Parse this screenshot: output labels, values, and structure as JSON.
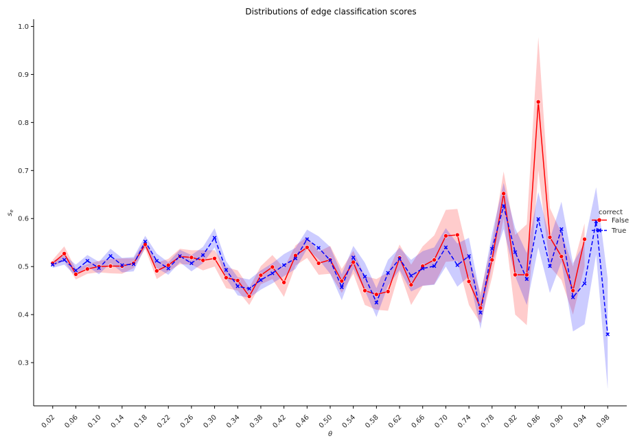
{
  "chart_data": {
    "type": "line",
    "title": "Distributions of edge classification scores",
    "xlabel": "θ",
    "ylabel": "s_e",
    "ylim": [
      0.21,
      1.015
    ],
    "xlim": [
      -0.013,
      1.013
    ],
    "yticks": [
      "0.3",
      "0.4",
      "0.5",
      "0.6",
      "0.7",
      "0.8",
      "0.9",
      "1.0"
    ],
    "xticks": [
      "0.02",
      "0.06",
      "0.10",
      "0.14",
      "0.18",
      "0.22",
      "0.26",
      "0.30",
      "0.34",
      "0.38",
      "0.42",
      "0.46",
      "0.50",
      "0.54",
      "0.58",
      "0.62",
      "0.66",
      "0.70",
      "0.74",
      "0.78",
      "0.82",
      "0.86",
      "0.90",
      "0.94",
      "0.98"
    ],
    "legend": {
      "title": "correct",
      "position": "right"
    },
    "grid": false,
    "series": [
      {
        "name": "False",
        "color": "#ff0000",
        "linestyle": "solid",
        "marker": "circle",
        "x": [
          0.02,
          0.04,
          0.06,
          0.08,
          0.1,
          0.12,
          0.14,
          0.16,
          0.18,
          0.2,
          0.22,
          0.24,
          0.26,
          0.28,
          0.3,
          0.32,
          0.34,
          0.36,
          0.38,
          0.4,
          0.42,
          0.44,
          0.46,
          0.48,
          0.5,
          0.52,
          0.54,
          0.56,
          0.58,
          0.6,
          0.62,
          0.64,
          0.66,
          0.68,
          0.7,
          0.72,
          0.74,
          0.76,
          0.78,
          0.8,
          0.82,
          0.84,
          0.86,
          0.88,
          0.9,
          0.92,
          0.94
        ],
        "values": [
          0.507,
          0.527,
          0.484,
          0.495,
          0.5,
          0.501,
          0.501,
          0.507,
          0.546,
          0.491,
          0.503,
          0.521,
          0.519,
          0.513,
          0.517,
          0.477,
          0.471,
          0.438,
          0.482,
          0.499,
          0.467,
          0.523,
          0.54,
          0.507,
          0.514,
          0.47,
          0.509,
          0.45,
          0.442,
          0.448,
          0.518,
          0.462,
          0.501,
          0.514,
          0.564,
          0.566,
          0.469,
          0.414,
          0.514,
          0.652,
          0.483,
          0.483,
          0.843,
          0.561,
          0.521,
          0.45,
          0.557
        ],
        "ci_low": [
          0.5,
          0.512,
          0.473,
          0.485,
          0.488,
          0.486,
          0.485,
          0.497,
          0.537,
          0.474,
          0.49,
          0.505,
          0.504,
          0.492,
          0.5,
          0.455,
          0.45,
          0.42,
          0.463,
          0.474,
          0.437,
          0.502,
          0.518,
          0.483,
          0.485,
          0.445,
          0.485,
          0.42,
          0.41,
          0.408,
          0.49,
          0.42,
          0.46,
          0.463,
          0.51,
          0.512,
          0.42,
          0.382,
          0.478,
          0.6,
          0.4,
          0.378,
          0.7,
          0.5,
          0.472,
          0.4,
          0.5
        ],
        "ci_high": [
          0.514,
          0.542,
          0.495,
          0.505,
          0.512,
          0.516,
          0.517,
          0.517,
          0.555,
          0.508,
          0.516,
          0.537,
          0.534,
          0.534,
          0.534,
          0.499,
          0.492,
          0.456,
          0.501,
          0.524,
          0.497,
          0.544,
          0.562,
          0.531,
          0.543,
          0.495,
          0.533,
          0.48,
          0.474,
          0.488,
          0.546,
          0.504,
          0.542,
          0.565,
          0.618,
          0.62,
          0.518,
          0.446,
          0.55,
          0.698,
          0.566,
          0.588,
          0.978,
          0.622,
          0.57,
          0.5,
          0.59
        ]
      },
      {
        "name": "True",
        "color": "#0000ff",
        "linestyle": "dashed",
        "marker": "x",
        "x": [
          0.02,
          0.04,
          0.06,
          0.08,
          0.1,
          0.12,
          0.14,
          0.16,
          0.18,
          0.2,
          0.22,
          0.24,
          0.26,
          0.28,
          0.3,
          0.32,
          0.34,
          0.36,
          0.38,
          0.4,
          0.42,
          0.44,
          0.46,
          0.48,
          0.5,
          0.52,
          0.54,
          0.56,
          0.58,
          0.6,
          0.62,
          0.64,
          0.66,
          0.68,
          0.7,
          0.72,
          0.74,
          0.76,
          0.78,
          0.8,
          0.82,
          0.84,
          0.86,
          0.88,
          0.9,
          0.92,
          0.94,
          0.96,
          0.98
        ],
        "values": [
          0.504,
          0.514,
          0.492,
          0.512,
          0.497,
          0.522,
          0.503,
          0.505,
          0.552,
          0.512,
          0.496,
          0.522,
          0.507,
          0.524,
          0.56,
          0.493,
          0.459,
          0.454,
          0.472,
          0.486,
          0.503,
          0.517,
          0.557,
          0.539,
          0.513,
          0.457,
          0.519,
          0.479,
          0.425,
          0.487,
          0.516,
          0.481,
          0.496,
          0.501,
          0.54,
          0.503,
          0.522,
          0.404,
          0.537,
          0.626,
          0.53,
          0.474,
          0.599,
          0.501,
          0.578,
          0.436,
          0.465,
          0.594,
          0.359
        ],
        "ci_low": [
          0.497,
          0.504,
          0.48,
          0.5,
          0.484,
          0.507,
          0.488,
          0.49,
          0.54,
          0.497,
          0.483,
          0.509,
          0.49,
          0.507,
          0.54,
          0.475,
          0.44,
          0.435,
          0.452,
          0.465,
          0.48,
          0.495,
          0.537,
          0.515,
          0.485,
          0.43,
          0.495,
          0.45,
          0.395,
          0.46,
          0.493,
          0.448,
          0.46,
          0.462,
          0.5,
          0.458,
          0.48,
          0.37,
          0.505,
          0.578,
          0.48,
          0.42,
          0.54,
          0.445,
          0.51,
          0.365,
          0.38,
          0.525,
          0.245
        ],
        "ci_high": [
          0.511,
          0.524,
          0.504,
          0.524,
          0.51,
          0.537,
          0.518,
          0.52,
          0.564,
          0.527,
          0.509,
          0.535,
          0.524,
          0.541,
          0.58,
          0.511,
          0.478,
          0.473,
          0.492,
          0.507,
          0.526,
          0.539,
          0.577,
          0.563,
          0.541,
          0.484,
          0.543,
          0.508,
          0.455,
          0.514,
          0.539,
          0.514,
          0.532,
          0.54,
          0.58,
          0.548,
          0.56,
          0.438,
          0.569,
          0.674,
          0.58,
          0.528,
          0.655,
          0.557,
          0.635,
          0.507,
          0.55,
          0.665,
          0.475
        ]
      }
    ]
  }
}
